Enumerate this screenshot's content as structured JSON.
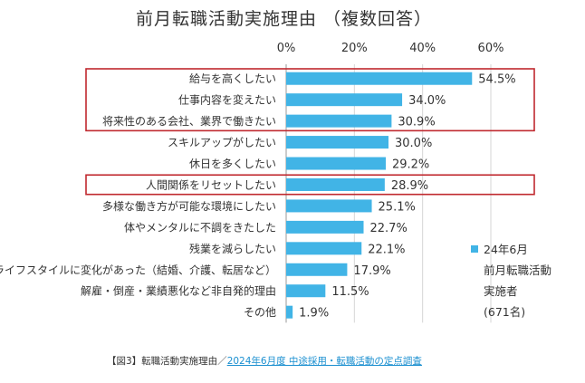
{
  "chart_data": {
    "type": "bar",
    "orientation": "horizontal",
    "title": "前月転職活動実施理由 （複数回答）",
    "categories": [
      "給与を高くしたい",
      "仕事内容を変えたい",
      "将来性のある会社、業界で働きたい",
      "スキルアップがしたい",
      "休日を多くしたい",
      "人間関係をリセットしたい",
      "多様な働き方が可能な環境にしたい",
      "体やメンタルに不調をきたした",
      "残業を減らしたい",
      "ライフスタイルに変化があった（結婚、介護、転居など）",
      "解雇・倒産・業績悪化など非自発的理由",
      "その他"
    ],
    "values": [
      54.5,
      34.0,
      30.9,
      30.0,
      29.2,
      28.9,
      25.1,
      22.7,
      22.1,
      17.9,
      11.5,
      1.9
    ],
    "value_labels": [
      "54.5%",
      "34.0%",
      "30.9%",
      "30.0%",
      "29.2%",
      "28.9%",
      "25.1%",
      "22.7%",
      "22.1%",
      "17.9%",
      "11.5%",
      "1.9%"
    ],
    "x_ticks": [
      "0%",
      "20%",
      "40%",
      "60%"
    ],
    "x_tick_values": [
      0,
      20,
      40,
      60
    ],
    "xlim": [
      0,
      60
    ],
    "grid": true,
    "legend_position": "right",
    "bar_color": "#41b4e6",
    "highlight_color": "#c0282e",
    "highlight_groups": [
      [
        0,
        1,
        2
      ],
      [
        5
      ]
    ],
    "series": [
      {
        "name_lines": [
          "24年6月",
          "前月転職活動",
          "実施者",
          "(671名)"
        ],
        "values": [
          54.5,
          34.0,
          30.9,
          30.0,
          29.2,
          28.9,
          25.1,
          22.7,
          22.1,
          17.9,
          11.5,
          1.9
        ]
      }
    ]
  },
  "caption": {
    "prefix": "【図3】転職活動実施理由／",
    "link_text": "2024年6月度 中途採用・転職活動の定点調査"
  }
}
